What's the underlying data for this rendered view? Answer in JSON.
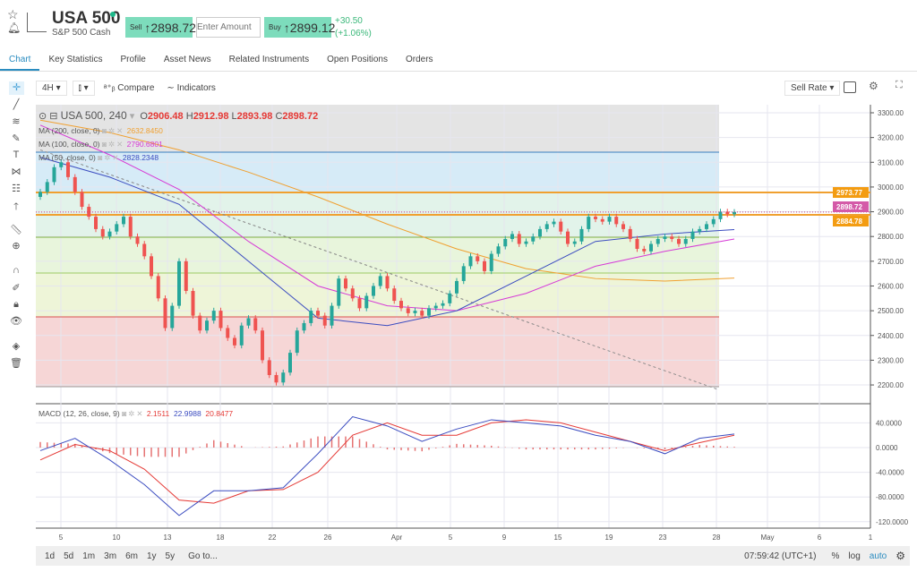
{
  "header": {
    "title": "USA 500",
    "subtitle": "S&P 500 Cash",
    "sell_label": "Sell",
    "sell_price": "↑2898.72",
    "amount_placeholder": "Enter Amount",
    "buy_label": "Buy",
    "buy_price": "↑2899.12",
    "change": "+30.50",
    "change_pct": "(+1.06%)"
  },
  "tabs": [
    "Chart",
    "Key Statistics",
    "Profile",
    "Asset News",
    "Related Instruments",
    "Open Positions",
    "Orders"
  ],
  "toolbar": {
    "interval": "4H",
    "chart_type": "candle-icon",
    "compare": "Compare",
    "indicators": "Indicators",
    "rate": "Sell Rate"
  },
  "legend": {
    "symbol": "USA 500, 240",
    "o_label": "O",
    "o": "2906.48",
    "h_label": "H",
    "h": "2912.98",
    "l_label": "L",
    "l": "2893.98",
    "c_label": "C",
    "c": "2898.72",
    "ma200": "MA (200, close, 0)",
    "ma200_val": "2632.8450",
    "ma100": "MA (100, close, 0)",
    "ma100_val": "2790.6801",
    "ma50": "MA (50, close, 0)",
    "ma50_val": "2828.2348",
    "macd": "MACD (12, 26, close, 9)",
    "macd_h": "2.1511",
    "macd_m": "22.9988",
    "macd_s": "20.8477"
  },
  "colors": {
    "up": "#26a69a",
    "down": "#ef5350",
    "ma50": "#3b4cc0",
    "ma100": "#d63ad6",
    "ma200": "#f0a030",
    "accent": "#2a8cc0"
  },
  "chart_data": {
    "type": "candlestick",
    "price_ticks": [
      "3300.00",
      "3200.00",
      "3100.00",
      "3000.00",
      "2900.00",
      "2800.00",
      "2700.00",
      "2600.00",
      "2500.00",
      "2400.00",
      "2300.00",
      "2200.00"
    ],
    "macd_ticks": [
      "40.0000",
      "0.0000",
      "-40.0000",
      "-80.0000",
      "-120.0000"
    ],
    "x_ticks": [
      "5",
      "10",
      "13",
      "18",
      "22",
      "26",
      "Apr",
      "5",
      "9",
      "15",
      "19",
      "23",
      "28",
      "May",
      "6",
      "1"
    ],
    "price_labels": {
      "level_high": "2973.77",
      "last": "2898.72",
      "level_low": "2884.78"
    },
    "closes": [
      2980,
      3020,
      3080,
      3100,
      3040,
      2980,
      2920,
      2880,
      2830,
      2800,
      2820,
      2850,
      2880,
      2800,
      2770,
      2720,
      2640,
      2550,
      2430,
      2520,
      2700,
      2580,
      2480,
      2420,
      2460,
      2500,
      2430,
      2390,
      2360,
      2440,
      2470,
      2420,
      2300,
      2240,
      2210,
      2250,
      2330,
      2420,
      2450,
      2500,
      2480,
      2440,
      2520,
      2630,
      2590,
      2550,
      2510,
      2560,
      2600,
      2640,
      2590,
      2540,
      2510,
      2490,
      2500,
      2480,
      2510,
      2520,
      2530,
      2570,
      2620,
      2680,
      2720,
      2700,
      2660,
      2730,
      2760,
      2790,
      2810,
      2770,
      2780,
      2800,
      2830,
      2850,
      2860,
      2820,
      2770,
      2780,
      2830,
      2880,
      2870,
      2860,
      2880,
      2850,
      2830,
      2790,
      2750,
      2740,
      2770,
      2790,
      2800,
      2790,
      2770,
      2790,
      2820,
      2830,
      2850,
      2870,
      2900,
      2890,
      2898.72
    ],
    "ma50_every10": [
      3120,
      3040,
      2930,
      2700,
      2470,
      2440,
      2500,
      2640,
      2780,
      2810,
      2828
    ],
    "ma100_every10": [
      3250,
      3130,
      2990,
      2780,
      2600,
      2520,
      2500,
      2570,
      2680,
      2740,
      2790
    ],
    "ma200_every10": [
      3270,
      3220,
      3150,
      3060,
      2960,
      2850,
      2750,
      2670,
      2630,
      2620,
      2632
    ],
    "macd_every5": [
      -5,
      15,
      -20,
      -60,
      -110,
      -70,
      -70,
      -65,
      -10,
      50,
      35,
      10,
      30,
      45,
      40,
      35,
      20,
      10,
      -10,
      15,
      22
    ],
    "signal_every5": [
      -20,
      5,
      -5,
      -35,
      -85,
      -90,
      -70,
      -68,
      -40,
      20,
      40,
      20,
      20,
      40,
      45,
      40,
      25,
      10,
      -5,
      8,
      20
    ],
    "fib_levels": [
      3140,
      2973.77,
      2884.78,
      2800,
      2650,
      2475,
      2190
    ],
    "trendline": [
      [
        0,
        3150
      ],
      [
        98,
        2180
      ]
    ]
  },
  "bottom": {
    "ranges": [
      "1d",
      "5d",
      "1m",
      "3m",
      "6m",
      "1y",
      "5y"
    ],
    "goto": "Go to...",
    "time": "07:59:42 (UTC+1)",
    "pct": "%",
    "log": "log",
    "auto": "auto"
  }
}
